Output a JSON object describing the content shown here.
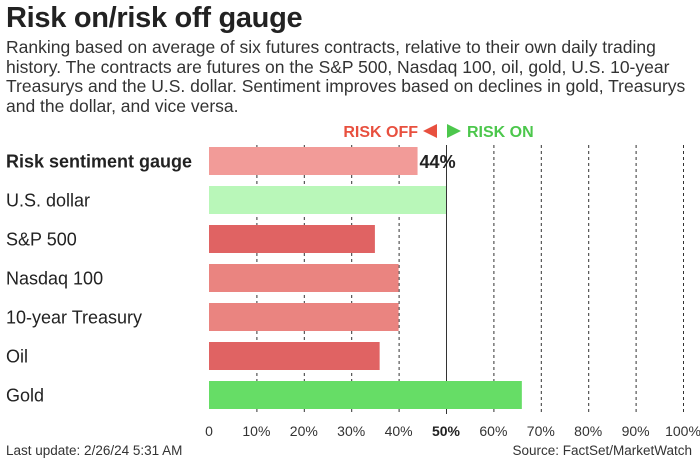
{
  "header": {
    "title": "Risk on/risk off gauge",
    "subtitle": "Ranking based on average of six futures contracts, relative to their own daily trading history. The contracts are futures on the S&P 500, Nasdaq 100, oil, gold, U.S. 10-year Treasurys and the U.S. dollar. Sentiment improves based on declines in gold, Treasurys and the dollar, and vice versa."
  },
  "legend": {
    "risk_off": "RISK OFF",
    "risk_on": "RISK ON",
    "risk_off_color": "#e8503f",
    "risk_on_color": "#4cc74c"
  },
  "footer": {
    "last_update": "Last update: 2/26/24 5:31 AM",
    "source": "Source: FactSet/MarketWatch"
  },
  "chart_data": {
    "type": "bar",
    "orientation": "horizontal",
    "categories": [
      "Risk sentiment gauge",
      "U.S. dollar",
      "S&P 500",
      "Nasdaq 100",
      "10-year Treasury",
      "Oil",
      "Gold"
    ],
    "values": [
      44,
      50,
      35,
      40,
      40,
      36,
      66
    ],
    "value_labels": [
      "44%",
      "",
      "",
      "",
      "",
      "",
      ""
    ],
    "bar_colors": [
      "#f29b98",
      "#b9f7b9",
      "#e06363",
      "#ea8480",
      "#ea8480",
      "#e06363",
      "#66dd66"
    ],
    "xlim": [
      0,
      100
    ],
    "x_ticks": [
      0,
      10,
      20,
      30,
      40,
      50,
      60,
      70,
      80,
      90,
      100
    ],
    "x_tick_labels": [
      "0",
      "10%",
      "20%",
      "30%",
      "40%",
      "50%",
      "60%",
      "70%",
      "80%",
      "90%",
      "100%"
    ],
    "midline": 50,
    "grid": true
  }
}
